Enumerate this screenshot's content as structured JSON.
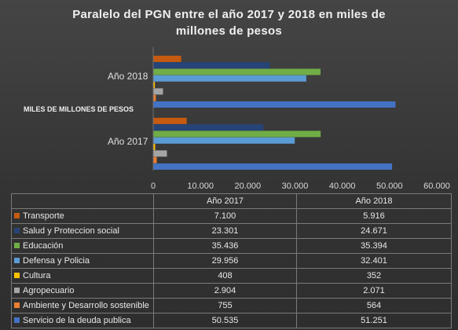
{
  "chart_data": {
    "type": "bar",
    "orientation": "horizontal",
    "title": "Paralelo del PGN entre el año 2017 y 2018 en miles de millones de pesos",
    "ylabel": "MILES DE MILLONES DE PESOS",
    "categories": [
      "Año 2017",
      "Año 2018"
    ],
    "xlim": [
      0,
      60000
    ],
    "xticks": [
      "0",
      "10.000",
      "20.000",
      "30.000",
      "40.000",
      "50.000",
      "60.000"
    ],
    "xtick_values": [
      0,
      10000,
      20000,
      30000,
      40000,
      50000,
      60000
    ],
    "gridlines": false,
    "legend_placement": "data-table",
    "series": [
      {
        "name": "Transporte",
        "color": "#c55a11",
        "values": [
          7100,
          5916
        ],
        "labels": [
          "7.100",
          "5.916"
        ]
      },
      {
        "name": "Salud y Proteccion social",
        "color": "#264478",
        "values": [
          23301,
          24671
        ],
        "labels": [
          "23.301",
          "24.671"
        ]
      },
      {
        "name": "Educación",
        "color": "#70ad47",
        "values": [
          35436,
          35394
        ],
        "labels": [
          "35.436",
          "35.394"
        ]
      },
      {
        "name": "Defensa y Policia",
        "color": "#5b9bd5",
        "values": [
          29956,
          32401
        ],
        "labels": [
          "29.956",
          "32.401"
        ]
      },
      {
        "name": "Cultura",
        "color": "#ffc000",
        "values": [
          408,
          352
        ],
        "labels": [
          "408",
          "352"
        ]
      },
      {
        "name": "Agropecuario",
        "color": "#a5a5a5",
        "values": [
          2904,
          2071
        ],
        "labels": [
          "2.904",
          "2.071"
        ]
      },
      {
        "name": "Ambiente y Desarrollo sostenible",
        "color": "#ed7d31",
        "values": [
          755,
          564
        ],
        "labels": [
          "755",
          "564"
        ]
      },
      {
        "name": "Servicio de la deuda publica",
        "color": "#4472c4",
        "values": [
          50535,
          51251
        ],
        "labels": [
          "50.535",
          "51.251"
        ]
      }
    ]
  }
}
